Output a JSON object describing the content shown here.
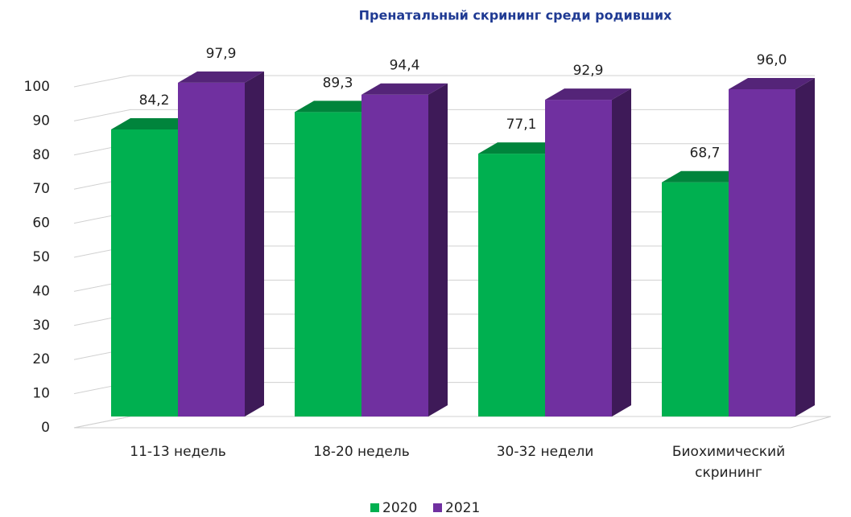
{
  "chart_data": {
    "type": "bar3d",
    "title": "Пренатальный скрининг среди родивших",
    "categories": [
      "11-13 недель",
      "18-20 недель",
      "30-32 недели",
      "Биохимический скрининг"
    ],
    "series": [
      {
        "name": "2020",
        "color": "#00b050",
        "values": [
          84.2,
          89.3,
          77.1,
          68.7
        ],
        "value_labels": [
          "84,2",
          "89,3",
          "77,1",
          "68,7"
        ]
      },
      {
        "name": "2021",
        "color": "#7030a0",
        "values": [
          97.9,
          94.4,
          92.9,
          96.0
        ],
        "value_labels": [
          "97,9",
          "94,4",
          "92,9",
          "96,0"
        ]
      }
    ],
    "ylim": [
      0,
      100
    ],
    "yticks": [
      0,
      10,
      20,
      30,
      40,
      50,
      60,
      70,
      80,
      90,
      100
    ],
    "grid": true,
    "legend": "bottom"
  }
}
